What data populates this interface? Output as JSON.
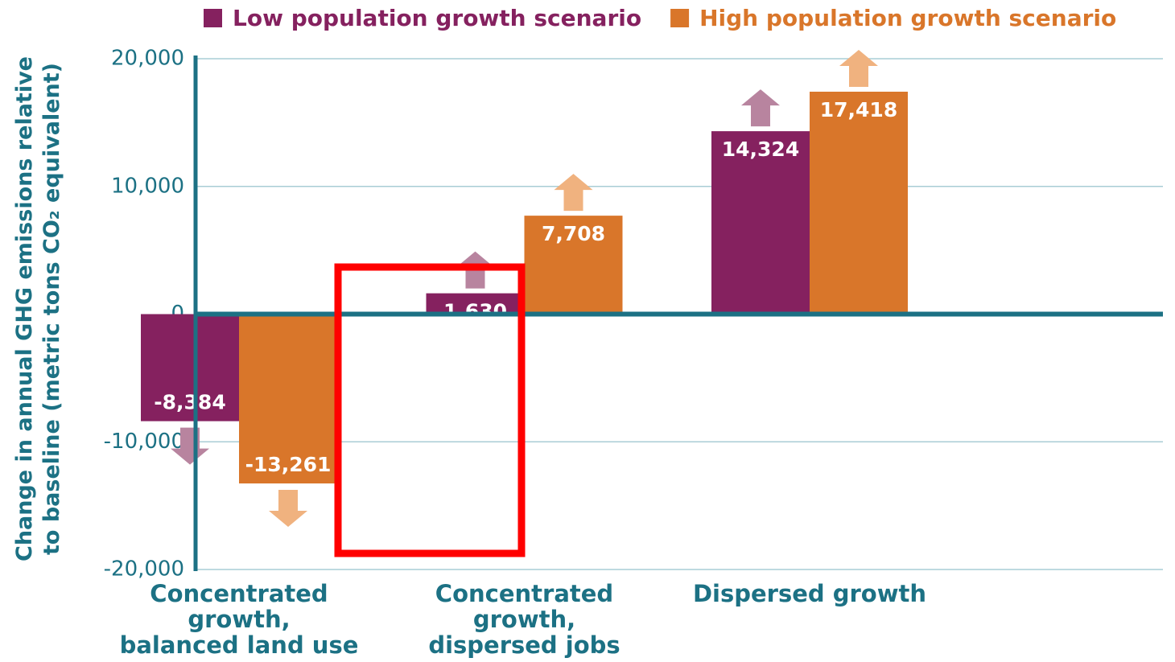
{
  "chart_data": {
    "type": "bar",
    "y_label": [
      "Change in annual GHG emissions relative",
      "to baseline (metric tons CO₂ equivalent)"
    ],
    "categories": [
      [
        "Concentrated",
        "growth,",
        "balanced land use"
      ],
      [
        "Concentrated",
        "growth,",
        "dispersed jobs"
      ],
      [
        "Dispersed growth"
      ]
    ],
    "series": [
      {
        "name": "Low population growth scenario",
        "color": "#85215f",
        "arrow_color": "#b8849f",
        "values": [
          -8384,
          1630,
          14324
        ],
        "value_labels": [
          "-8,384",
          "1,630",
          "14,324"
        ]
      },
      {
        "name": "High population growth scenario",
        "color": "#d9762a",
        "arrow_color": "#f0b27f",
        "values": [
          -13261,
          7708,
          17418
        ],
        "value_labels": [
          "-13,261",
          "7,708",
          "17,418"
        ]
      }
    ],
    "ylim": [
      -20000,
      20000
    ],
    "yticks": [
      {
        "value": -20000,
        "label": "-20,000"
      },
      {
        "value": -10000,
        "label": "-10,000"
      },
      0,
      {
        "value": 10000,
        "label": "10,000"
      },
      {
        "value": 20000,
        "label": "20,000"
      }
    ],
    "grid": true
  }
}
